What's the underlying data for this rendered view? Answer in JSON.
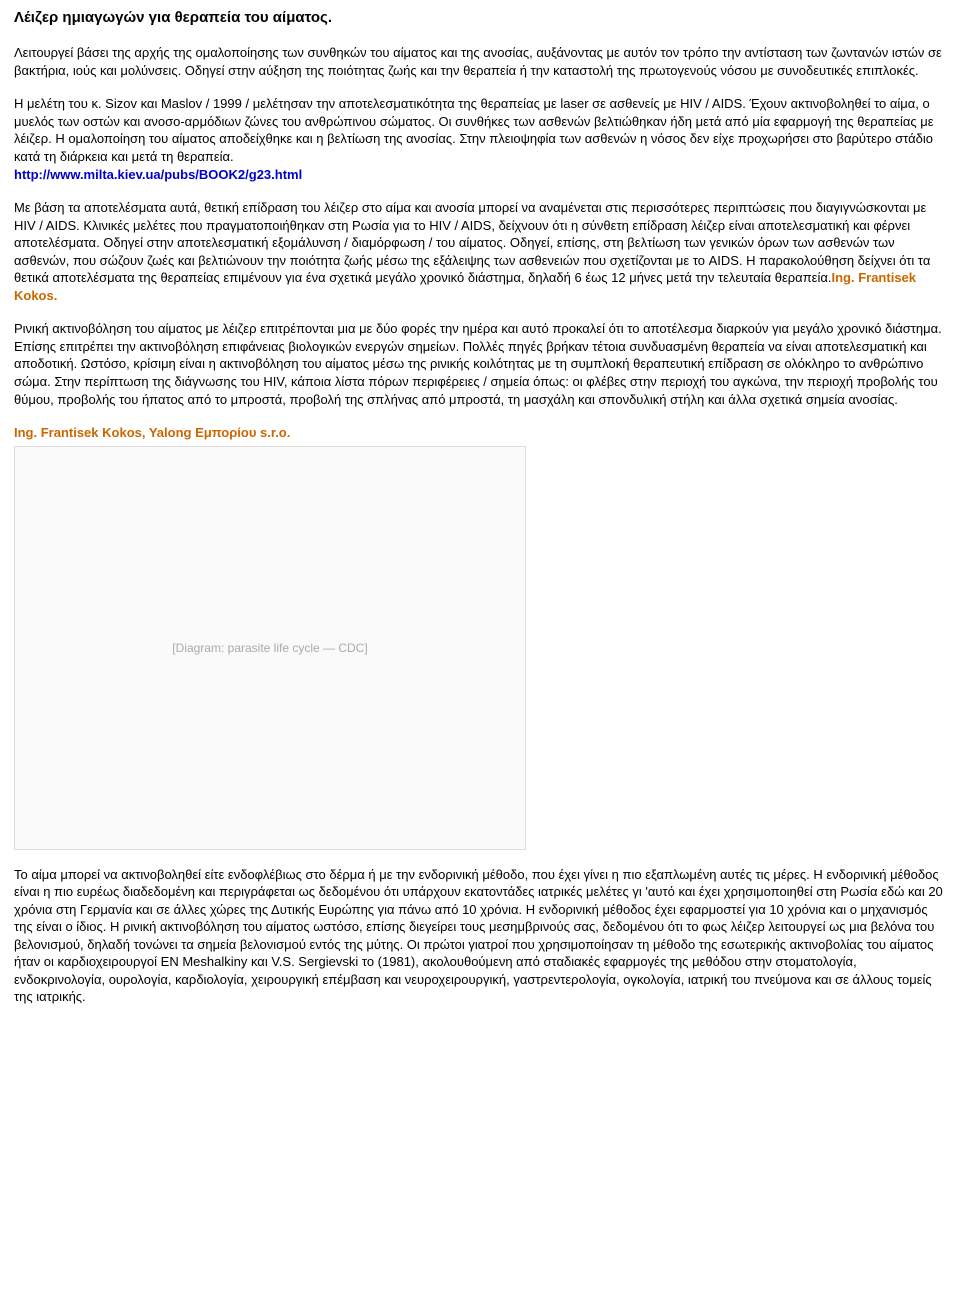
{
  "title": "Λέιζερ ημιαγωγών για θεραπεία του αίματος.",
  "para1": "Λειτουργεί βάσει της αρχής της ομαλοποίησης των συνθηκών του αίματος και της ανοσίας, αυξάνοντας με αυτόν τον τρόπο την αντίσταση των ζωντανών ιστών σε βακτήρια, ιούς και μολύνσεις. Οδηγεί στην αύξηση της ποιότητας ζωής και την θεραπεία ή την καταστολή της πρωτογενούς νόσου με συνοδευτικές επιπλοκές.",
  "para2_text": "Η μελέτη του κ. Sizov και Maslov / 1999 / μελέτησαν την αποτελεσματικότητα της θεραπείας με laser σε ασθενείς με HIV / AIDS. Έχουν ακτινοβοληθεί το αίμα, ο μυελός των οστών και ανοσο-αρμόδιων ζώνες του ανθρώπινου σώματος. Οι συνθήκες των ασθενών βελτιώθηκαν ήδη μετά από μία εφαρμογή της θεραπείας με λέιζερ. Η ομαλοποίηση του αίματος αποδείχθηκε και η βελτίωση της ανοσίας. Στην πλειοψηφία των ασθενών η νόσος δεν είχε προχωρήσει στο βαρύτερο στάδιο κατά τη διάρκεια και μετά τη θεραπεία.",
  "para2_link": "http://www.milta.kiev.ua/pubs/BOOK2/g23.html",
  "para3_text": "Με βάση τα αποτελέσματα αυτά, θετική επίδραση του λέιζερ στο αίμα και ανοσία μπορεί να αναμένεται στις περισσότερες περιπτώσεις που διαγιγνώσκονται με HIV / AIDS. Κλινικές μελέτες που πραγματοποιήθηκαν στη Ρωσία για το HIV / AIDS, δείχνουν ότι η σύνθετη επίδραση λέιζερ είναι αποτελεσματική και φέρνει αποτελέσματα. Οδηγεί στην αποτελεσματική εξομάλυνση / διαμόρφωση / του αίματος. Οδηγεί, επίσης, στη βελτίωση των γενικών όρων των ασθενών των ασθενών, που σώζουν ζωές και βελτιώνουν την ποιότητα ζωής μέσω της εξάλειψης των ασθενειών που σχετίζονται με το AIDS. Η παρακολούθηση δείχνει ότι τα θετικά αποτελέσματα της θεραπείας επιμένουν για ένα σχετικά μεγάλο χρονικό διάστημα, δηλαδή 6 έως 12 μήνες μετά την τελευταία θεραπεία.",
  "para3_author": "Ing. Frantisek Kokos.",
  "para4": "Ρινική ακτινοβόληση του αίματος με λέιζερ επιτρέπονται μια με δύο φορές την ημέρα και αυτό προκαλεί ότι το αποτέλεσμα διαρκούν για μεγάλο χρονικό διάστημα. Επίσης επιτρέπει την ακτινοβόληση επιφάνειας βιολογικών ενεργών σημείων. Πολλές πηγές βρήκαν τέτοια συνδυασμένη θεραπεία να είναι αποτελεσματική και αποδοτική. Ωστόσο, κρίσιμη είναι η ακτινοβόληση του αίματος μέσω της ρινικής κοιλότητας με τη συμπλοκή θεραπευτική επίδραση σε ολόκληρο το ανθρώπινο σώμα. Στην περίπτωση της διάγνωσης του HIV, κάποια λίστα πόρων περιφέρειες / σημεία όπως: οι φλέβες στην περιοχή του αγκώνα, την περιοχή προβολής του θύμου, προβολής του ήπατος από το μπροστά, προβολή της σπλήνας από μπροστά, τη μασχάλη και σπονδυλική στήλη και άλλα σχετικά σημεία ανοσίας.",
  "author_line": "Ing. Frantisek Kokos, Yalong Εμπορίου s.r.o.",
  "diagram_alt": "[Diagram: parasite life cycle — CDC]",
  "para5": "Το αίμα μπορεί να ακτινοβοληθεί είτε ενδοφλέβιως στο δέρμα ή με την ενδορινική μέθοδο, που έχει γίνει η πιο εξαπλωμένη  αυτές τις μέρες. Η ενδορινική μέθοδος είναι η πιο ευρέως διαδεδομένη και περιγράφεται ως δεδομένου ότι υπάρχουν εκατοντάδες ιατρικές μελέτες γι 'αυτό και έχει χρησιμοποιηθεί στη Ρωσία εδώ και 20 χρόνια στη Γερμανία και σε άλλες χώρες της Δυτικής Ευρώπης για πάνω από 10 χρόνια. Η ενδορινική μέθοδος έχει εφαρμοστεί για 10 χρόνια και ο μηχανισμός της είναι ο ίδιος. Η ρινική ακτινοβόληση του αίματος ωστόσο, επίσης διεγείρει τους μεσημβρινούς σας, δεδομένου ότι το φως λέιζερ λειτουργεί ως μια βελόνα του βελονισμού, δηλαδή τονώνει τα σημεία βελονισμού εντός της μύτης. Οι πρώτοι γιατροί που χρησιμοποίησαν τη μέθοδο της εσωτερικής ακτινοβολίας του αίματος ήταν οι καρδιοχειρουργοί EN Meshalkiny και V.S. Sergievski το (1981), ακολουθούμενη από σταδιακές εφαρμογές της μεθόδου στην στοματολογία, ενδοκρινολογία, ουρολογία, καρδιολογία, χειρουργική επέμβαση και νευροχειρουργική, γαστρεντερολογία, ογκολογία, ιατρική του πνεύμονα και σε άλλους τομείς της ιατρικής."
}
